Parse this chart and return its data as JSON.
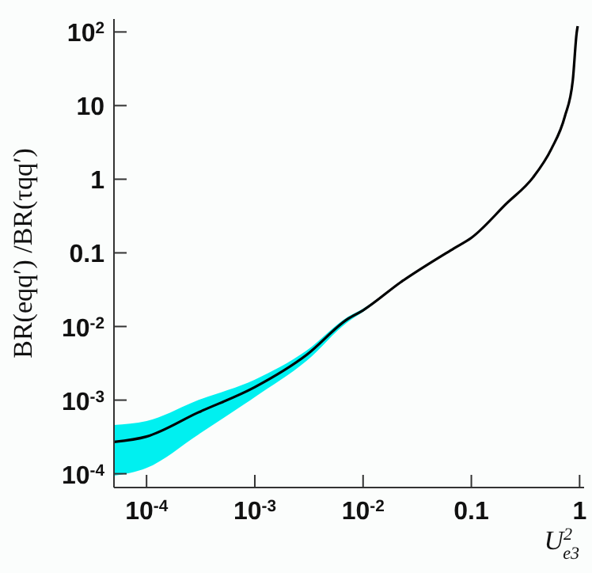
{
  "chart_data": {
    "type": "line",
    "xlabel": "U$^{2}$$_{e3}$",
    "ylabel": "BR(eqq′) /BR(τqq′)",
    "log": "xy",
    "grid": false,
    "legend": false,
    "marker": "none",
    "line_style": "solid",
    "xlim": [
      5e-05,
      1.1
    ],
    "ylim": [
      6.5e-05,
      150
    ],
    "xticks": [
      {
        "value": 0.0001,
        "label": "10$^{-4}$"
      },
      {
        "value": 0.001,
        "label": "10$^{-3}$"
      },
      {
        "value": 0.01,
        "label": "10$^{-2}$"
      },
      0.1,
      1
    ],
    "yticks": [
      {
        "value": 0.0001,
        "label": "10$^{-4}$"
      },
      {
        "value": 0.001,
        "label": "10$^{-3}$"
      },
      {
        "value": 0.01,
        "label": "10$^{-2}$"
      },
      0.1,
      1,
      10,
      {
        "value": 100,
        "label": "10$^{2}$"
      }
    ],
    "series": [
      {
        "color": "#000000",
        "x": [
          5e-05,
          0.0001,
          0.0003,
          0.001,
          0.003,
          0.0072,
          0.01,
          0.0223,
          0.069,
          0.1,
          0.212,
          0.372,
          0.55,
          0.73,
          0.865,
          0.94,
          0.96
        ],
        "values": [
          0.00027,
          0.00032,
          0.00068,
          0.0015,
          0.0041,
          0.0126,
          0.0166,
          0.04,
          0.115,
          0.16,
          0.47,
          1.06,
          2.6,
          7.1,
          22,
          98,
          120
        ],
        "upper": [
          0.00046,
          0.00052,
          0.001,
          0.0019,
          0.0047,
          0.0135,
          0.0175,
          0.04,
          0.115,
          0.16,
          0.47,
          1.06,
          2.6,
          7.1,
          22,
          98,
          120
        ],
        "lower": [
          9.4e-05,
          0.00012,
          0.00034,
          0.0011,
          0.0034,
          0.0115,
          0.0158,
          0.04,
          0.115,
          0.16,
          0.47,
          1.06,
          2.6,
          7.1,
          22,
          98,
          120
        ]
      }
    ]
  }
}
